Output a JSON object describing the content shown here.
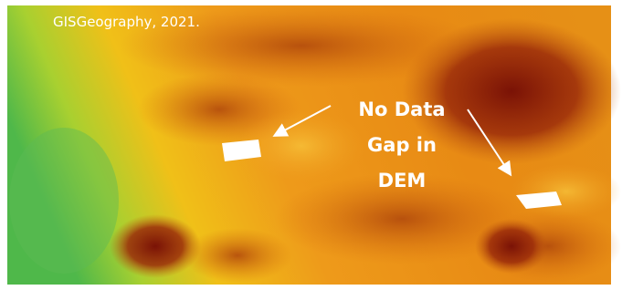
{
  "credit": "GISGeography, 2021.",
  "annotation": {
    "lines": [
      "No Data",
      "Gap in",
      "DEM"
    ]
  }
}
